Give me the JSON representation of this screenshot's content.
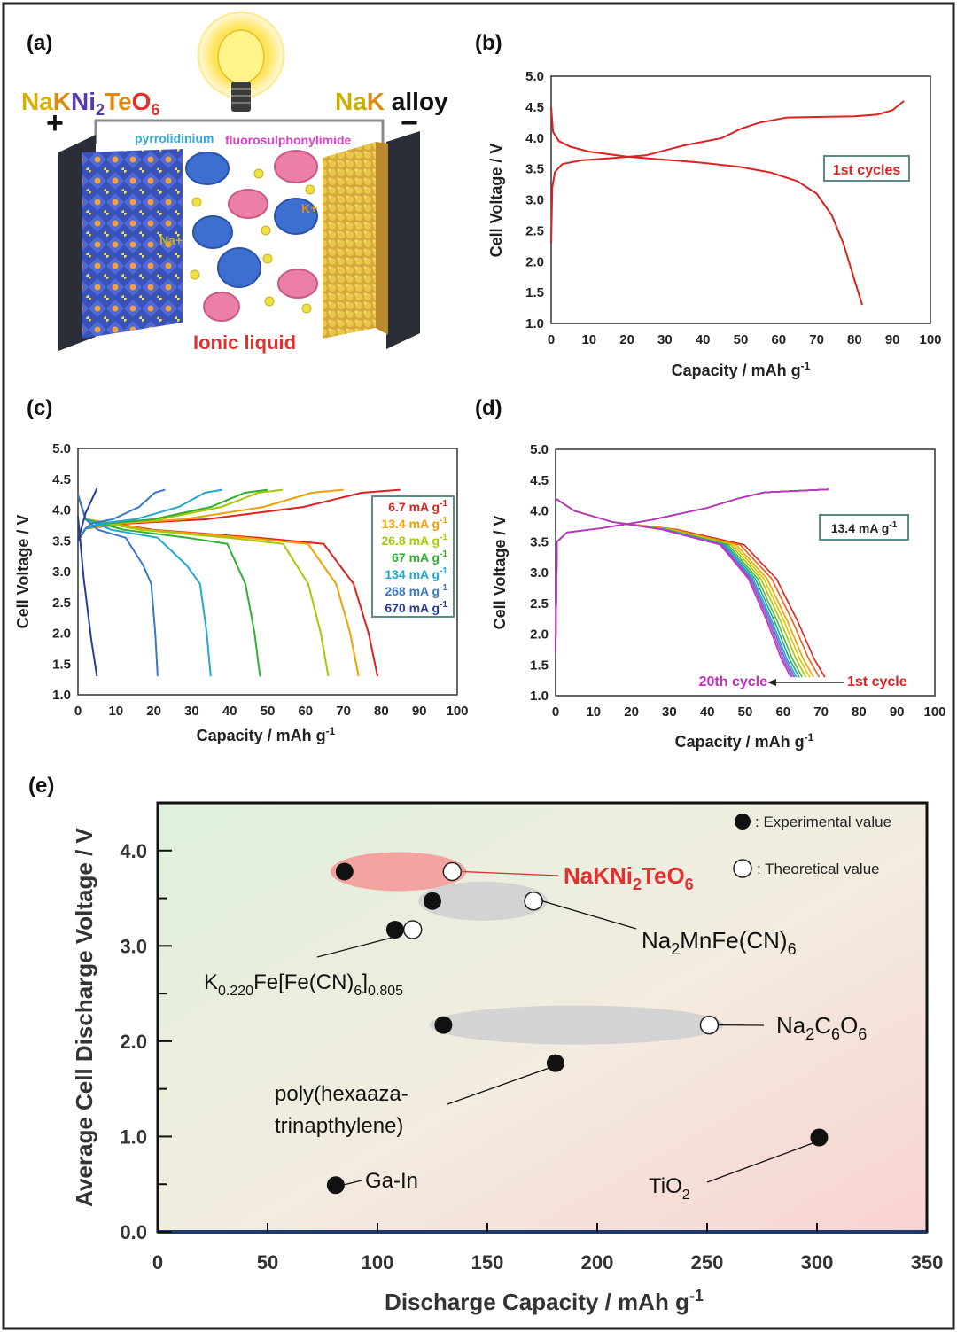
{
  "panel_labels": [
    "(a)",
    "(b)",
    "(c)",
    "(d)",
    "(e)"
  ],
  "schematic": {
    "cathode_label_parts": [
      "Na",
      "K",
      "Ni",
      "2",
      "Te",
      "O",
      "6"
    ],
    "plus_sign": "+",
    "anode_label_parts": [
      "Na",
      "K",
      " alloy"
    ],
    "minus_sign": "−",
    "cation_label": "pyrrolidinium",
    "anion_label": "fluorosulphonylimide",
    "na_ion_label": "Na+",
    "k_ion_label": "K+",
    "electrolyte_label": "Ionic liquid",
    "colors": {
      "cathode": "#d9b400",
      "anode": "#c8b400",
      "cation": "#2ea8d8",
      "anion": "#e040c8",
      "ions": "#e03030",
      "light": "#ffe680"
    }
  },
  "chart_data": [
    {
      "id": "b",
      "type": "line",
      "xlabel": "Capacity / mAh g-1",
      "ylabel": "Cell Voltage / V",
      "xlim": [
        0,
        100
      ],
      "ylim": [
        1.0,
        5.0
      ],
      "xticks": [
        "0",
        "10",
        "20",
        "30",
        "40",
        "50",
        "60",
        "70",
        "80",
        "90",
        "100"
      ],
      "yticks": [
        "1.0",
        "1.5",
        "2.0",
        "2.5",
        "3.0",
        "3.5",
        "4.0",
        "4.5",
        "5.0"
      ],
      "legend": "1st cycles",
      "legend_color": "#e02020",
      "series": [
        {
          "color": "#e02020",
          "points": [
            [
              0,
              2.3
            ],
            [
              0.3,
              3.2
            ],
            [
              1,
              3.45
            ],
            [
              3,
              3.58
            ],
            [
              8,
              3.64
            ],
            [
              15,
              3.67
            ],
            [
              25,
              3.72
            ],
            [
              35,
              3.88
            ],
            [
              45,
              4.0
            ],
            [
              50,
              4.15
            ],
            [
              55,
              4.25
            ],
            [
              62,
              4.33
            ],
            [
              70,
              4.34
            ],
            [
              80,
              4.35
            ],
            [
              86,
              4.38
            ],
            [
              90,
              4.45
            ],
            [
              93,
              4.6
            ]
          ]
        },
        {
          "color": "#e02020",
          "points": [
            [
              0,
              4.5
            ],
            [
              0.5,
              4.1
            ],
            [
              2,
              3.95
            ],
            [
              5,
              3.86
            ],
            [
              10,
              3.78
            ],
            [
              20,
              3.7
            ],
            [
              30,
              3.65
            ],
            [
              40,
              3.6
            ],
            [
              50,
              3.53
            ],
            [
              58,
              3.44
            ],
            [
              65,
              3.3
            ],
            [
              70,
              3.1
            ],
            [
              74,
              2.75
            ],
            [
              77,
              2.3
            ],
            [
              80,
              1.7
            ],
            [
              82,
              1.3
            ]
          ]
        }
      ]
    },
    {
      "id": "c",
      "type": "line",
      "xlabel": "Capacity / mAh g-1",
      "ylabel": "Cell Voltage / V",
      "xlim": [
        0,
        100
      ],
      "ylim": [
        1.0,
        5.0
      ],
      "xticks": [
        "0",
        "10",
        "20",
        "30",
        "40",
        "50",
        "60",
        "70",
        "80",
        "90",
        "100"
      ],
      "yticks": [
        "1.0",
        "1.5",
        "2.0",
        "2.5",
        "3.0",
        "3.5",
        "4.0",
        "4.5",
        "5.0"
      ],
      "series": [
        {
          "name": "6.7 mA g-1",
          "color": "#e02020",
          "charge_end": [
            85,
            4.35
          ],
          "discharge_end": [
            79,
            1.3
          ]
        },
        {
          "name": "13.4 mA g-1",
          "color": "#f0a000",
          "charge_end": [
            70,
            4.35
          ],
          "discharge_end": [
            74,
            1.3
          ]
        },
        {
          "name": "26.8 mA g-1",
          "color": "#a8c800",
          "charge_end": [
            54,
            4.35
          ],
          "discharge_end": [
            66,
            1.3
          ]
        },
        {
          "name": "67 mA g-1",
          "color": "#30b030",
          "charge_end": [
            50,
            4.35
          ],
          "discharge_end": [
            48,
            1.3
          ]
        },
        {
          "name": "134 mA g-1",
          "color": "#20a8d0",
          "charge_end": [
            38,
            4.35
          ],
          "discharge_end": [
            35,
            1.3
          ]
        },
        {
          "name": "268 mA g-1",
          "color": "#3a78c8",
          "charge_end": [
            23,
            4.35
          ],
          "discharge_end": [
            21,
            1.3
          ]
        },
        {
          "name": "670 mA g-1",
          "color": "#2a3a98",
          "charge_end": [
            5,
            4.35
          ],
          "discharge_end": [
            5,
            1.3
          ]
        }
      ]
    },
    {
      "id": "d",
      "type": "line",
      "xlabel": "Capacity / mAh g-1",
      "ylabel": "Cell Voltage / V",
      "xlim": [
        0,
        100
      ],
      "ylim": [
        1.0,
        5.0
      ],
      "xticks": [
        "0",
        "10",
        "20",
        "30",
        "40",
        "50",
        "60",
        "70",
        "80",
        "90",
        "100"
      ],
      "yticks": [
        "1.0",
        "1.5",
        "2.0",
        "2.5",
        "3.0",
        "3.5",
        "4.0",
        "4.5",
        "5.0"
      ],
      "legend": "13.4 mA g-1",
      "first_cycle_label": "1st  cycle",
      "last_cycle_label": "20th cycle",
      "charge_end": [
        72,
        4.35
      ],
      "discharge_ends": [
        71,
        69.5,
        68,
        67,
        66,
        65,
        64.2,
        63.5,
        63,
        62.5,
        62
      ],
      "colors": [
        "#e02020",
        "#f06010",
        "#f0a000",
        "#d8c800",
        "#a8c800",
        "#50b840",
        "#20a888",
        "#20a8d0",
        "#6a70d0",
        "#a050c8",
        "#c030c0"
      ]
    },
    {
      "id": "e",
      "type": "scatter",
      "xlabel": "Discharge Capacity / mAh g-1",
      "ylabel": "Average Cell Discharge Voltage / V",
      "xlim": [
        0,
        350
      ],
      "ylim": [
        0,
        4.5
      ],
      "xticks": [
        "0",
        "50",
        "100",
        "150",
        "200",
        "250",
        "300",
        "350"
      ],
      "yticks": [
        "0.0",
        "1.0",
        "2.0",
        "3.0",
        "4.0"
      ],
      "legend_experimental": ": Experimental value",
      "legend_theoretical": ": Theoretical value",
      "materials": [
        {
          "label_parts": [
            "NaKNi",
            "2",
            "TeO",
            "6"
          ],
          "label_color": "#e03030",
          "experimental": [
            85,
            3.78
          ],
          "theoretical": [
            134,
            3.78
          ],
          "band_color": "#f59a9a"
        },
        {
          "label_parts": [
            "Na",
            "2",
            "MnFe(CN)",
            "6"
          ],
          "label_color": "#111111",
          "experimental": [
            125,
            3.47
          ],
          "theoretical": [
            171,
            3.47
          ],
          "band_color": "#d0d0d0"
        },
        {
          "label_parts": [
            "K",
            "0.220",
            "Fe[Fe(CN)",
            "6",
            "]",
            "0.805"
          ],
          "label_color": "#111111",
          "experimental": [
            108,
            3.17
          ],
          "theoretical": [
            116,
            3.17
          ],
          "band_color": ""
        },
        {
          "label_parts": [
            "Na",
            "2",
            "C",
            "6",
            "O",
            "6"
          ],
          "label_color": "#111111",
          "experimental": [
            130,
            2.17
          ],
          "theoretical": [
            251,
            2.17
          ],
          "band_color": "#d0d0d0"
        },
        {
          "label_parts": [
            "poly(hexaaza-",
            "trinapthylene)"
          ],
          "label_color": "#111111",
          "experimental": [
            181,
            1.77
          ],
          "theoretical": null,
          "band_color": ""
        },
        {
          "label_parts": [
            "TiO",
            "2"
          ],
          "label_color": "#111111",
          "experimental": [
            301,
            0.99
          ],
          "theoretical": null,
          "band_color": ""
        },
        {
          "label_parts": [
            "Ga-In"
          ],
          "label_color": "#111111",
          "experimental": [
            81,
            0.49
          ],
          "theoretical": null,
          "band_color": ""
        }
      ]
    }
  ]
}
